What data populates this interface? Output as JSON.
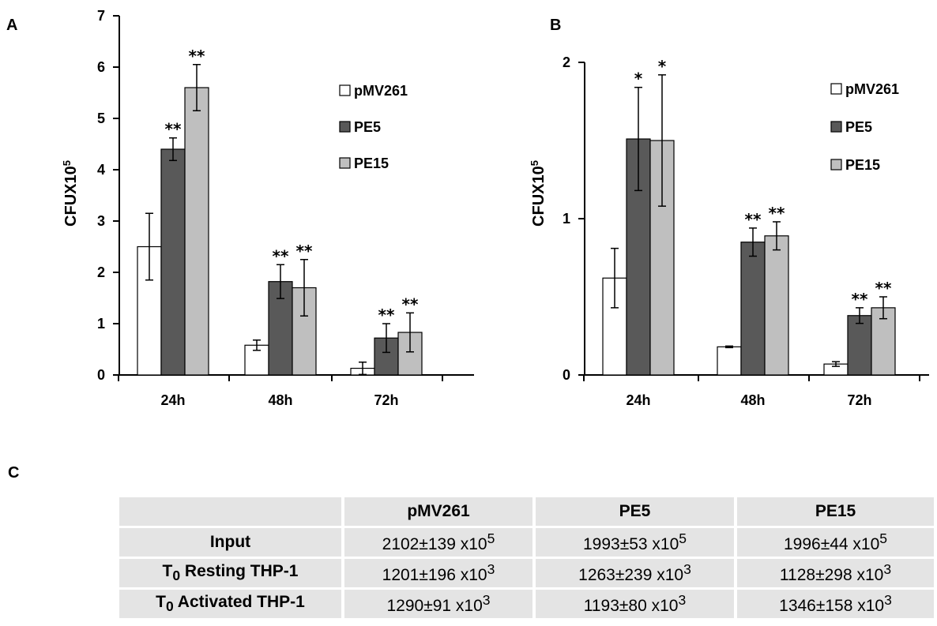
{
  "chart_data": [
    {
      "panel": "A",
      "type": "bar",
      "ylabel": "CFUX10",
      "ylabel_sup": "5",
      "ylim": [
        0,
        7
      ],
      "yticks": [
        "0",
        "1",
        "2",
        "3",
        "4",
        "5",
        "6",
        "7"
      ],
      "categories": [
        "24h",
        "48h",
        "72h"
      ],
      "legend_position": "top-right",
      "series": [
        {
          "name": "pMV261",
          "color": "#ffffff",
          "values": [
            2.5,
            0.58,
            0.13
          ],
          "errors": [
            0.65,
            0.1,
            0.12
          ],
          "stars": [
            "",
            "",
            ""
          ]
        },
        {
          "name": "PE5",
          "color": "#595959",
          "values": [
            4.4,
            1.82,
            0.72
          ],
          "errors": [
            0.22,
            0.33,
            0.28
          ],
          "stars": [
            "**",
            "**",
            "**"
          ]
        },
        {
          "name": "PE15",
          "color": "#bfbfbf",
          "values": [
            5.6,
            1.7,
            0.83
          ],
          "errors": [
            0.45,
            0.55,
            0.38
          ],
          "stars": [
            "**",
            "**",
            "**"
          ]
        }
      ]
    },
    {
      "panel": "B",
      "type": "bar",
      "ylabel": "CFUX10",
      "ylabel_sup": "5",
      "ylim": [
        0,
        2
      ],
      "yticks": [
        "0",
        "1",
        "2"
      ],
      "categories": [
        "24h",
        "48h",
        "72h"
      ],
      "legend_position": "top-right",
      "series": [
        {
          "name": "pMV261",
          "color": "#ffffff",
          "values": [
            0.62,
            0.18,
            0.07
          ],
          "errors": [
            0.19,
            0.005,
            0.015
          ],
          "stars": [
            "",
            "",
            ""
          ]
        },
        {
          "name": "PE5",
          "color": "#595959",
          "values": [
            1.51,
            0.85,
            0.38
          ],
          "errors": [
            0.33,
            0.09,
            0.05
          ],
          "stars": [
            "*",
            "**",
            "**"
          ]
        },
        {
          "name": "PE15",
          "color": "#bfbfbf",
          "values": [
            1.5,
            0.89,
            0.43
          ],
          "errors": [
            0.42,
            0.09,
            0.07
          ],
          "stars": [
            "*",
            "**",
            "**"
          ]
        }
      ]
    }
  ],
  "table": {
    "panel": "C",
    "headers": [
      "",
      "pMV261",
      "PE5",
      "PE15"
    ],
    "rows": [
      {
        "label": "Input",
        "label_sub": "",
        "label_rest": "",
        "values": [
          {
            "base": "2102±139 x10",
            "exp": "5"
          },
          {
            "base": "1993±53 x10",
            "exp": "5"
          },
          {
            "base": "1996±44 x10",
            "exp": "5"
          }
        ]
      },
      {
        "label": "T",
        "label_sub": "0",
        "label_rest": " Resting THP-1",
        "values": [
          {
            "base": "1201±196 x10",
            "exp": "3"
          },
          {
            "base": "1263±239 x10",
            "exp": "3"
          },
          {
            "base": "1128±298 x10",
            "exp": "3"
          }
        ]
      },
      {
        "label": "T",
        "label_sub": "0",
        "label_rest": " Activated THP-1",
        "values": [
          {
            "base": "1290±91 x10",
            "exp": "3"
          },
          {
            "base": "1193±80 x10",
            "exp": "3"
          },
          {
            "base": "1346±158 x10",
            "exp": "3"
          }
        ]
      }
    ]
  }
}
